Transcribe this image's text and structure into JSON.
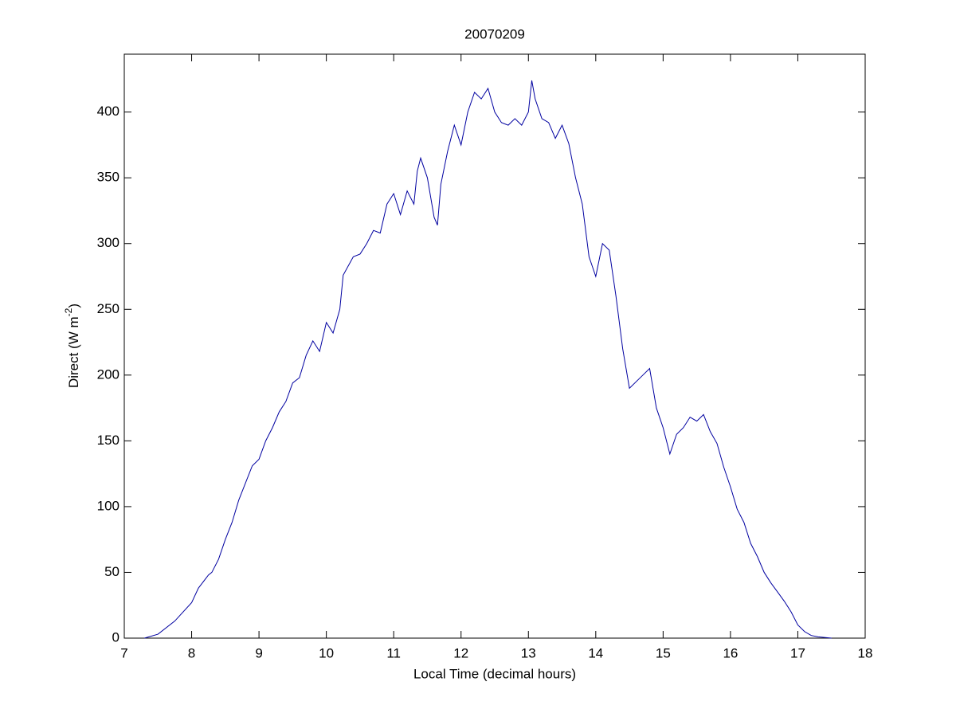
{
  "chart_data": {
    "type": "line",
    "title": "20070209",
    "xlabel": "Local Time (decimal hours)",
    "ylabel": "Direct (W m",
    "ylabel_sup": "-2",
    "ylabel_end": ")",
    "xlim": [
      7,
      18
    ],
    "xticks": [
      7,
      8,
      9,
      10,
      11,
      12,
      13,
      14,
      15,
      16,
      17,
      18
    ],
    "ylim": [
      0,
      444
    ],
    "yticks": [
      0,
      50,
      100,
      150,
      200,
      250,
      300,
      350,
      400
    ],
    "grid": false,
    "series": [
      {
        "color": "#0000a0",
        "x": [
          7.3,
          7.5,
          7.75,
          8.0,
          8.1,
          8.25,
          8.3,
          8.4,
          8.5,
          8.6,
          8.7,
          8.8,
          8.9,
          9.0,
          9.1,
          9.2,
          9.3,
          9.4,
          9.5,
          9.6,
          9.7,
          9.8,
          9.9,
          10.0,
          10.1,
          10.2,
          10.25,
          10.4,
          10.5,
          10.6,
          10.7,
          10.8,
          10.9,
          11.0,
          11.1,
          11.2,
          11.3,
          11.35,
          11.4,
          11.5,
          11.55,
          11.6,
          11.65,
          11.7,
          11.8,
          11.9,
          12.0,
          12.1,
          12.2,
          12.3,
          12.4,
          12.5,
          12.6,
          12.7,
          12.8,
          12.9,
          13.0,
          13.05,
          13.1,
          13.2,
          13.3,
          13.4,
          13.5,
          13.6,
          13.7,
          13.8,
          13.9,
          14.0,
          14.1,
          14.2,
          14.3,
          14.4,
          14.5,
          14.6,
          14.7,
          14.8,
          14.9,
          15.0,
          15.1,
          15.2,
          15.3,
          15.4,
          15.5,
          15.6,
          15.7,
          15.8,
          15.9,
          16.0,
          16.1,
          16.2,
          16.3,
          16.4,
          16.5,
          16.6,
          16.7,
          16.8,
          16.9,
          17.0,
          17.1,
          17.2,
          17.3,
          17.5
        ],
        "values": [
          0,
          3,
          13,
          27,
          38,
          48,
          50,
          60,
          75,
          88,
          105,
          118,
          131,
          136,
          150,
          160,
          172,
          180,
          194,
          198,
          215,
          226,
          218,
          240,
          232,
          250,
          276,
          290,
          292,
          300,
          310,
          308,
          330,
          338,
          322,
          340,
          330,
          355,
          365,
          350,
          335,
          320,
          314,
          345,
          370,
          390,
          375,
          400,
          415,
          410,
          418,
          400,
          392,
          390,
          395,
          390,
          400,
          424,
          410,
          395,
          392,
          380,
          390,
          376,
          350,
          330,
          290,
          275,
          300,
          295,
          260,
          220,
          190,
          195,
          200,
          205,
          175,
          160,
          140,
          155,
          160,
          168,
          165,
          170,
          157,
          148,
          130,
          115,
          98,
          88,
          72,
          62,
          50,
          42,
          35,
          28,
          20,
          10,
          5,
          2,
          1,
          0
        ]
      }
    ]
  }
}
